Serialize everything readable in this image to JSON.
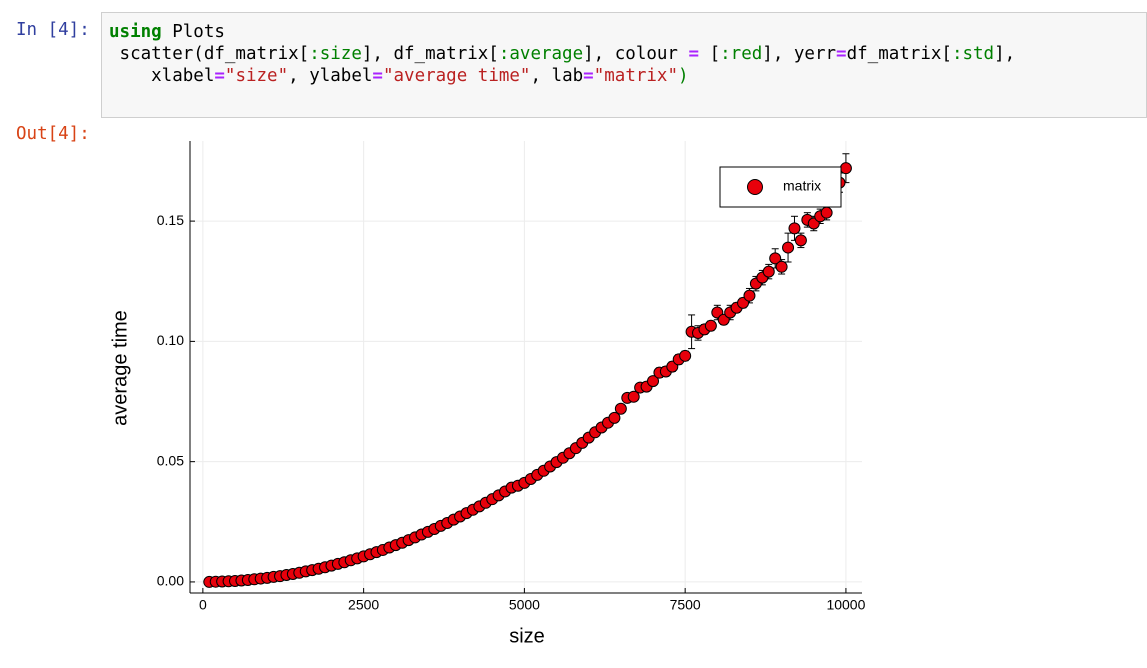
{
  "notebook": {
    "in_prompt": "In [4]:",
    "out_prompt": "Out[4]:",
    "code": {
      "lines": [
        [
          "using",
          " Plots"
        ],
        [
          " scatter(df_matrix[",
          ":size",
          "], df_matrix[",
          ":average",
          "], colour ",
          "=",
          " [",
          ":red",
          "], yerr",
          "=",
          "df_matrix[",
          ":std",
          "],"
        ],
        [
          "    xlabel",
          "=",
          "\"size\"",
          ", ylabel",
          "=",
          "\"average time\"",
          ", lab",
          "=",
          "\"matrix\"",
          ")"
        ]
      ]
    }
  },
  "chart_data": {
    "type": "scatter",
    "xlabel": "size",
    "ylabel": "average time",
    "x": [
      100,
      200,
      300,
      400,
      500,
      600,
      700,
      800,
      900,
      1000,
      1100,
      1200,
      1300,
      1400,
      1500,
      1600,
      1700,
      1800,
      1900,
      2000,
      2100,
      2200,
      2300,
      2400,
      2500,
      2600,
      2700,
      2800,
      2900,
      3000,
      3100,
      3200,
      3300,
      3400,
      3500,
      3600,
      3700,
      3800,
      3900,
      4000,
      4100,
      4200,
      4300,
      4400,
      4500,
      4600,
      4700,
      4800,
      4900,
      5000,
      5100,
      5200,
      5300,
      5400,
      5500,
      5600,
      5700,
      5800,
      5900,
      6000,
      6100,
      6200,
      6300,
      6400,
      6500,
      6600,
      6700,
      6800,
      6900,
      7000,
      7100,
      7200,
      7300,
      7400,
      7500,
      7600,
      7700,
      7800,
      7900,
      8000,
      8100,
      8200,
      8300,
      8400,
      8500,
      8600,
      8700,
      8800,
      8900,
      9000,
      9100,
      9200,
      9300,
      9400,
      9500,
      9600,
      9700,
      9800,
      9900,
      10000
    ],
    "series": [
      {
        "name": "matrix",
        "color": "#e8000b",
        "values": [
          0.0,
          0.0001,
          0.0002,
          0.0003,
          0.0004,
          0.0006,
          0.0008,
          0.0011,
          0.0014,
          0.0017,
          0.0021,
          0.0024,
          0.0029,
          0.0033,
          0.0038,
          0.0044,
          0.0049,
          0.0055,
          0.0061,
          0.0068,
          0.0075,
          0.0082,
          0.009,
          0.0098,
          0.0106,
          0.0115,
          0.0124,
          0.0133,
          0.0143,
          0.0153,
          0.0163,
          0.0174,
          0.0185,
          0.0197,
          0.0208,
          0.022,
          0.0233,
          0.0245,
          0.0259,
          0.0272,
          0.0286,
          0.03,
          0.0314,
          0.0329,
          0.0344,
          0.036,
          0.0376,
          0.0392,
          0.04,
          0.0412,
          0.0428,
          0.0445,
          0.0462,
          0.048,
          0.0498,
          0.0516,
          0.0535,
          0.0556,
          0.0578,
          0.06,
          0.0622,
          0.0642,
          0.0662,
          0.0682,
          0.072,
          0.0765,
          0.077,
          0.0808,
          0.0812,
          0.0835,
          0.087,
          0.0875,
          0.0895,
          0.0925,
          0.094,
          0.104,
          0.1035,
          0.105,
          0.1065,
          0.112,
          0.109,
          0.112,
          0.114,
          0.116,
          0.119,
          0.124,
          0.1265,
          0.129,
          0.1345,
          0.131,
          0.139,
          0.147,
          0.142,
          0.1505,
          0.149,
          0.152,
          0.1535,
          0.162,
          0.166,
          0.172
        ],
        "errors": [
          0.0003,
          0.0003,
          0.0003,
          0.0003,
          0.0003,
          0.0003,
          0.0003,
          0.0003,
          0.0003,
          0.0003,
          0.0003,
          0.0003,
          0.0003,
          0.0003,
          0.0003,
          0.0003,
          0.0003,
          0.0003,
          0.0003,
          0.0003,
          0.0003,
          0.0003,
          0.0003,
          0.0003,
          0.0003,
          0.0003,
          0.0003,
          0.0003,
          0.0003,
          0.0003,
          0.0003,
          0.0003,
          0.0003,
          0.0003,
          0.0003,
          0.0003,
          0.0003,
          0.0003,
          0.0003,
          0.0003,
          0.0003,
          0.0003,
          0.0003,
          0.0003,
          0.0003,
          0.0003,
          0.0003,
          0.0003,
          0.0003,
          0.0008,
          0.0008,
          0.0008,
          0.0008,
          0.0008,
          0.0008,
          0.0008,
          0.0008,
          0.0008,
          0.0008,
          0.0008,
          0.0008,
          0.0008,
          0.0008,
          0.0008,
          0.0008,
          0.0008,
          0.0008,
          0.0008,
          0.0008,
          0.0008,
          0.002,
          0.002,
          0.002,
          0.002,
          0.002,
          0.007,
          0.003,
          0.002,
          0.002,
          0.003,
          0.002,
          0.003,
          0.002,
          0.002,
          0.003,
          0.003,
          0.003,
          0.003,
          0.004,
          0.003,
          0.006,
          0.005,
          0.003,
          0.003,
          0.003,
          0.003,
          0.003,
          0.003,
          0.004,
          0.006
        ]
      }
    ],
    "xlim": [
      -200,
      10250
    ],
    "ylim": [
      -0.0046,
      0.1833
    ],
    "xticks": [
      0,
      2500,
      5000,
      7500,
      10000
    ],
    "yticks": [
      {
        "value": 0,
        "label": "0.00"
      },
      {
        "value": 0.05,
        "label": "0.05"
      },
      {
        "value": 0.1,
        "label": "0.10"
      },
      {
        "value": 0.15,
        "label": "0.15"
      }
    ],
    "grid": true,
    "legend": "top-right"
  }
}
